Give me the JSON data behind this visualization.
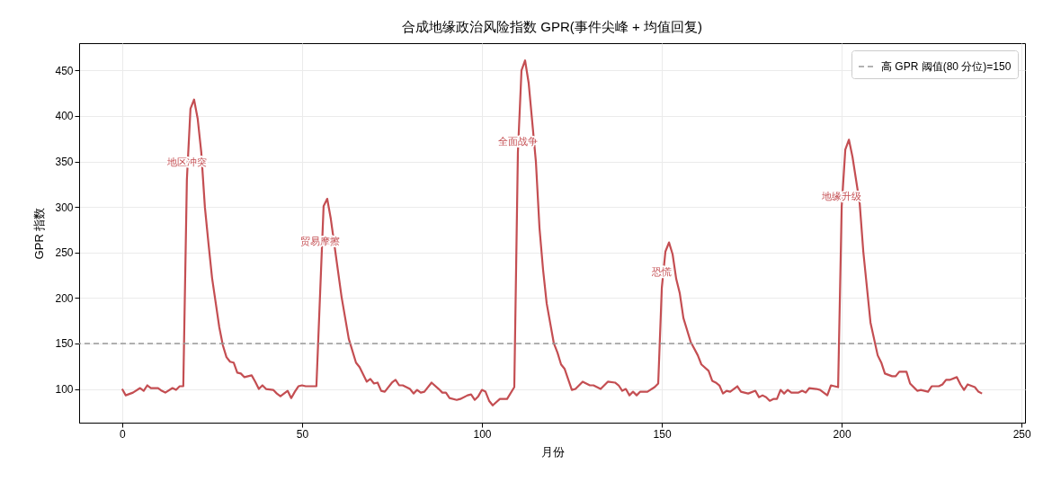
{
  "chart_data": {
    "type": "line",
    "title": "合成地缘政治风险指数 GPR(事件尖峰 + 均值回复)",
    "xlabel": "月份",
    "ylabel": "GPR 指数",
    "xlim": [
      -11.95,
      250.95
    ],
    "ylim": [
      63,
      480
    ],
    "xticks": [
      0,
      50,
      100,
      150,
      200,
      250
    ],
    "yticks": [
      100,
      150,
      200,
      250,
      300,
      350,
      400,
      450
    ],
    "grid": true,
    "legend": "top right",
    "series": [
      {
        "color": "#c44e52",
        "x": [
          0,
          1,
          3,
          5,
          6,
          7,
          8,
          10,
          11,
          12,
          14,
          15,
          16,
          17,
          18,
          19,
          20,
          21,
          22,
          23,
          24,
          25,
          26,
          27,
          28,
          29,
          30,
          31,
          32,
          33,
          34,
          36,
          37,
          38,
          39,
          40,
          42,
          43,
          44,
          45,
          46,
          47,
          48,
          49,
          50,
          51,
          54,
          56,
          57,
          58,
          61,
          63,
          65,
          66,
          68,
          69,
          70,
          71,
          72,
          73,
          75,
          76,
          77,
          78,
          80,
          81,
          82,
          83,
          84,
          86,
          88,
          89,
          90,
          91,
          93,
          94,
          96,
          97,
          98,
          99,
          100,
          101,
          102,
          103,
          105,
          107,
          109,
          110,
          111,
          112,
          113,
          115,
          116,
          117,
          118,
          120,
          121,
          122,
          123,
          125,
          126,
          128,
          130,
          131,
          133,
          135,
          137,
          138,
          139,
          140,
          141,
          142,
          143,
          144,
          146,
          148,
          149,
          150,
          151,
          152,
          153,
          154,
          155,
          156,
          158,
          160,
          161,
          163,
          164,
          165,
          166,
          167,
          168,
          169,
          171,
          172,
          174,
          176,
          177,
          178,
          179,
          180,
          181,
          182,
          183,
          184,
          185,
          186,
          188,
          189,
          190,
          191,
          193,
          194,
          196,
          197,
          199,
          200,
          201,
          202,
          203,
          205,
          206,
          208,
          210,
          211,
          212,
          214,
          215,
          216,
          218,
          219,
          221,
          222,
          224,
          225,
          227,
          228,
          229,
          230,
          232,
          233,
          234,
          235,
          237,
          238,
          239
        ],
        "values": [
          100,
          93,
          96,
          101,
          98,
          104,
          101,
          101,
          98,
          96,
          101,
          99,
          103,
          103,
          330,
          408,
          418,
          397,
          360,
          300,
          260,
          222,
          195,
          168,
          148,
          135,
          130,
          129,
          118,
          117,
          113,
          115,
          108,
          100,
          104,
          100,
          99,
          95,
          92,
          95,
          98,
          90,
          97,
          103,
          104,
          103,
          103,
          301,
          309,
          287,
          201,
          155,
          129,
          124,
          108,
          111,
          106,
          107,
          98,
          97,
          107,
          110,
          104,
          104,
          100,
          95,
          99,
          96,
          97,
          107,
          100,
          96,
          96,
          90,
          88,
          89,
          93,
          94,
          88,
          92,
          99,
          97,
          87,
          82,
          89,
          89,
          102,
          360,
          450,
          461,
          436,
          350,
          277,
          231,
          194,
          150,
          140,
          127,
          122,
          99,
          100,
          108,
          104,
          104,
          100,
          108,
          107,
          104,
          98,
          100,
          93,
          97,
          93,
          97,
          97,
          102,
          106,
          211,
          251,
          261,
          248,
          221,
          205,
          178,
          152,
          137,
          127,
          120,
          109,
          107,
          104,
          95,
          98,
          97,
          103,
          97,
          95,
          98,
          91,
          93,
          91,
          87,
          89,
          89,
          99,
          95,
          99,
          96,
          96,
          98,
          96,
          101,
          100,
          99,
          93,
          104,
          102,
          301,
          363,
          374,
          355,
          304,
          251,
          173,
          137,
          129,
          117,
          114,
          114,
          119,
          119,
          106,
          98,
          99,
          97,
          103,
          103,
          105,
          110,
          110,
          113,
          105,
          99,
          105,
          102,
          97,
          95
        ]
      }
    ],
    "ref_lines": [
      {
        "axis": "y",
        "value": 150,
        "label": "高 GPR 阈值(80 分位)=150",
        "color": "#999999",
        "line_style": "dashed"
      }
    ],
    "annotations": [
      {
        "text": "地区冲突",
        "x": 18,
        "y": 349
      },
      {
        "text": "贸易摩擦",
        "x": 55,
        "y": 262
      },
      {
        "text": "全面战争",
        "x": 110,
        "y": 371
      },
      {
        "text": "恐慌",
        "x": 150,
        "y": 228
      },
      {
        "text": "地缘升级",
        "x": 200,
        "y": 311
      }
    ]
  }
}
